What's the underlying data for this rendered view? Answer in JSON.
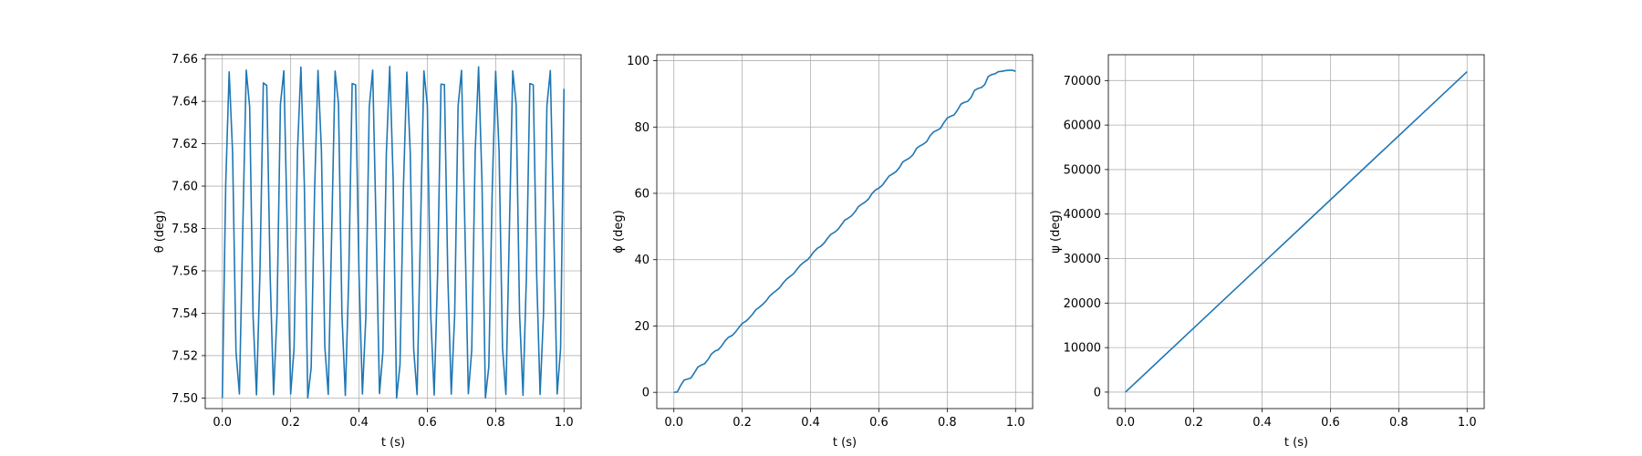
{
  "colors": {
    "series": "#1f77b4",
    "grid": "#b0b0b0",
    "background": "#ffffff"
  },
  "chart_data": [
    {
      "type": "line",
      "xlabel": "t (s)",
      "ylabel": "θ (deg)",
      "xlim": [
        -0.05,
        1.05
      ],
      "ylim": [
        7.495,
        7.662
      ],
      "xticks": [
        0.0,
        0.2,
        0.4,
        0.6,
        0.8,
        1.0
      ],
      "xtick_labels": [
        "0.0",
        "0.2",
        "0.4",
        "0.6",
        "0.8",
        "1.0"
      ],
      "yticks": [
        7.5,
        7.52,
        7.54,
        7.56,
        7.58,
        7.6,
        7.62,
        7.64,
        7.66
      ],
      "ytick_labels": [
        "7.50",
        "7.52",
        "7.54",
        "7.56",
        "7.58",
        "7.60",
        "7.62",
        "7.64",
        "7.66"
      ],
      "grid": true,
      "series": [
        {
          "x": [
            0.0,
            0.01,
            0.02,
            0.03,
            0.04,
            0.05,
            0.06,
            0.07,
            0.08,
            0.09,
            0.1,
            0.11,
            0.12,
            0.13,
            0.14,
            0.15,
            0.16,
            0.17,
            0.18,
            0.19,
            0.2,
            0.21,
            0.22,
            0.23,
            0.24,
            0.25,
            0.26,
            0.27,
            0.28,
            0.29,
            0.3,
            0.31,
            0.32,
            0.33,
            0.34,
            0.35,
            0.36,
            0.37,
            0.38,
            0.39,
            0.4,
            0.41,
            0.42,
            0.43,
            0.44,
            0.45,
            0.46,
            0.47,
            0.48,
            0.49,
            0.5,
            0.51,
            0.52,
            0.53,
            0.54,
            0.55,
            0.56,
            0.57,
            0.58,
            0.59,
            0.6,
            0.61,
            0.62,
            0.63,
            0.64,
            0.65,
            0.66,
            0.67,
            0.68,
            0.69,
            0.7,
            0.71,
            0.72,
            0.73,
            0.74,
            0.75,
            0.76,
            0.77,
            0.78,
            0.79,
            0.8,
            0.81,
            0.82,
            0.83,
            0.84,
            0.85,
            0.86,
            0.87,
            0.88,
            0.89,
            0.9,
            0.91,
            0.92,
            0.93,
            0.94,
            0.95,
            0.96,
            0.97,
            0.98,
            0.99,
            1.0
          ],
          "y": [
            7.5,
            7.6013,
            7.6539,
            7.616,
            7.5217,
            7.5019,
            7.581,
            7.6547,
            7.6374,
            7.5383,
            7.5015,
            7.5587,
            7.6487,
            7.6475,
            7.5576,
            7.5016,
            7.5398,
            7.6385,
            7.6544,
            7.5791,
            7.5019,
            7.5236,
            7.6167,
            7.6562,
            7.6006,
            7.5,
            7.5142,
            7.5976,
            7.6546,
            7.6169,
            7.5241,
            7.5017,
            7.5774,
            7.6543,
            7.6388,
            7.5399,
            7.5012,
            7.5569,
            7.6484,
            7.6478,
            7.5585,
            7.5019,
            7.5381,
            7.6372,
            7.6547,
            7.5808,
            7.5021,
            7.5219,
            7.6151,
            7.6565,
            7.6031,
            7.5,
            7.5157,
            7.5994,
            7.6538,
            7.6159,
            7.5231,
            7.5016,
            7.5796,
            7.6544,
            7.6381,
            7.539,
            7.5014,
            7.5579,
            7.6481,
            7.6479,
            7.557,
            7.5018,
            7.5391,
            7.6377,
            7.6546,
            7.5799,
            7.502,
            7.5228,
            7.6159,
            7.6563,
            7.6017,
            7.5,
            7.5149,
            7.5986,
            7.6542,
            7.6164,
            7.5237,
            7.5017,
            7.5782,
            7.6544,
            7.6384,
            7.5395,
            7.5013,
            7.5574,
            7.6484,
            7.6478,
            7.5581,
            7.5017,
            7.5394,
            7.638,
            7.6545,
            7.5796,
            7.5019,
            7.5232,
            7.6459
          ]
        }
      ]
    },
    {
      "type": "line",
      "xlabel": "t (s)",
      "ylabel": "ϕ (deg)",
      "xlim": [
        -0.05,
        1.05
      ],
      "ylim": [
        -4.9,
        101.8
      ],
      "xticks": [
        0.0,
        0.2,
        0.4,
        0.6,
        0.8,
        1.0
      ],
      "xtick_labels": [
        "0.0",
        "0.2",
        "0.4",
        "0.6",
        "0.8",
        "1.0"
      ],
      "yticks": [
        0,
        20,
        40,
        60,
        80,
        100
      ],
      "ytick_labels": [
        "0",
        "20",
        "40",
        "60",
        "80",
        "100"
      ],
      "grid": true,
      "series": [
        {
          "x": [
            0.0,
            0.01,
            0.02,
            0.03,
            0.04,
            0.05,
            0.06,
            0.07,
            0.08,
            0.09,
            0.1,
            0.11,
            0.12,
            0.13,
            0.14,
            0.15,
            0.16,
            0.17,
            0.18,
            0.19,
            0.2,
            0.21,
            0.22,
            0.23,
            0.24,
            0.25,
            0.26,
            0.27,
            0.28,
            0.29,
            0.3,
            0.31,
            0.32,
            0.33,
            0.34,
            0.35,
            0.36,
            0.37,
            0.38,
            0.39,
            0.4,
            0.41,
            0.42,
            0.43,
            0.44,
            0.45,
            0.46,
            0.47,
            0.48,
            0.49,
            0.5,
            0.51,
            0.52,
            0.53,
            0.54,
            0.55,
            0.56,
            0.57,
            0.58,
            0.59,
            0.6,
            0.61,
            0.62,
            0.63,
            0.64,
            0.65,
            0.66,
            0.67,
            0.68,
            0.69,
            0.7,
            0.71,
            0.72,
            0.73,
            0.74,
            0.75,
            0.76,
            0.77,
            0.78,
            0.79,
            0.8,
            0.81,
            0.82,
            0.83,
            0.84,
            0.85,
            0.86,
            0.87,
            0.88,
            0.89,
            0.9,
            0.91,
            0.92,
            0.93,
            0.94,
            0.95,
            0.96,
            0.97,
            0.98,
            0.99,
            1.0
          ],
          "y": [
            0.0,
            0.0903,
            2.1074,
            3.7051,
            3.996,
            4.3213,
            5.8927,
            7.5913,
            8.2187,
            8.6018,
            9.9142,
            11.5787,
            12.4356,
            12.851,
            14.0077,
            15.5387,
            16.6266,
            17.0985,
            18.1546,
            19.5189,
            20.7839,
            21.3689,
            22.3345,
            23.5355,
            24.9016,
            25.6483,
            26.5205,
            27.5649,
            28.9757,
            29.9137,
            30.7207,
            31.6166,
            33.0127,
            34.1409,
            34.9491,
            35.7225,
            37.0274,
            38.3151,
            39.1889,
            39.8634,
            41.0306,
            42.4309,
            43.4334,
            44.0447,
            45.0458,
            46.4825,
            47.6731,
            48.2538,
            49.1017,
            50.4771,
            51.8983,
            52.5002,
            53.2266,
            54.4246,
            55.9899,
            56.7578,
            57.3846,
            58.3401,
            59.9432,
            61.0092,
            61.5824,
            62.4409,
            63.8573,
            65.2472,
            65.8288,
            66.5533,
            67.7563,
            69.4628,
            70.0848,
            70.6798,
            71.6685,
            73.5328,
            74.2895,
            74.8402,
            75.6063,
            77.3921,
            78.5092,
            79.0329,
            79.5868,
            81.2571,
            82.7041,
            83.2332,
            83.6393,
            85.0949,
            86.8866,
            87.4297,
            87.7512,
            88.9428,
            91.0546,
            91.6183,
            91.8941,
            92.8112,
            95.2061,
            95.799,
            96.0628,
            96.7062,
            96.8,
            97.0,
            97.1,
            97.15,
            96.8
          ]
        }
      ]
    },
    {
      "type": "line",
      "xlabel": "t (s)",
      "ylabel": "ψ (deg)",
      "xlim": [
        -0.05,
        1.05
      ],
      "ylim": [
        -3700,
        75800
      ],
      "xticks": [
        0.0,
        0.2,
        0.4,
        0.6,
        0.8,
        1.0
      ],
      "xtick_labels": [
        "0.0",
        "0.2",
        "0.4",
        "0.6",
        "0.8",
        "1.0"
      ],
      "yticks": [
        0,
        10000,
        20000,
        30000,
        40000,
        50000,
        60000,
        70000
      ],
      "ytick_labels": [
        "0",
        "10000",
        "20000",
        "30000",
        "40000",
        "50000",
        "60000",
        "70000"
      ],
      "grid": true,
      "series": [
        {
          "x": [
            0.0,
            0.25,
            0.5,
            0.75,
            1.0
          ],
          "y": [
            0,
            18000,
            36000,
            54000,
            72000
          ]
        }
      ]
    }
  ]
}
